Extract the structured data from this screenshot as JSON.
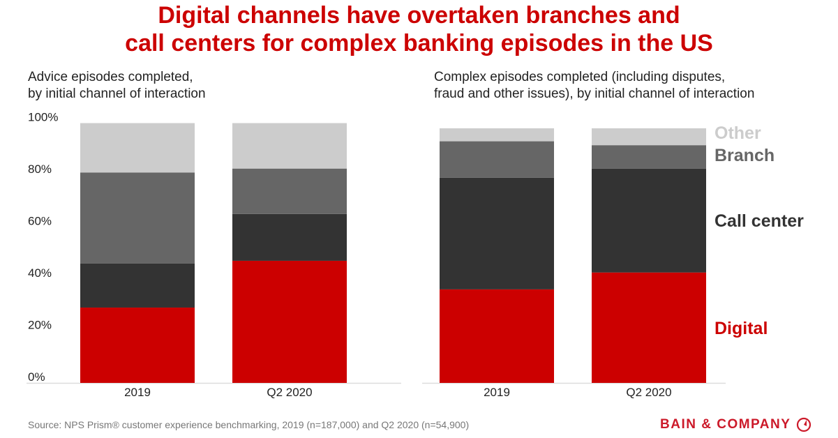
{
  "title_lines": [
    "Digital channels have overtaken branches and",
    "call centers for complex banking episodes in the US"
  ],
  "colors": {
    "Digital": "#cc0000",
    "Call center": "#333333",
    "Branch": "#666666",
    "Other": "#cccccc",
    "title": "#cc0000"
  },
  "chart_data": [
    {
      "type": "bar",
      "stacked": true,
      "title": "Advice episodes completed, by initial channel of interaction",
      "title_lines": [
        "Advice episodes completed,",
        "by initial channel of interaction"
      ],
      "categories": [
        "2019",
        "Q2 2020"
      ],
      "ylim": [
        0,
        100
      ],
      "yticks": [
        "0%",
        "20%",
        "40%",
        "60%",
        "80%",
        "100%"
      ],
      "series": [
        {
          "name": "Digital",
          "values": [
            29,
            47
          ]
        },
        {
          "name": "Call center",
          "values": [
            17,
            18
          ]
        },
        {
          "name": "Branch",
          "values": [
            35,
            17.5
          ]
        },
        {
          "name": "Other",
          "values": [
            19,
            17.5
          ]
        }
      ]
    },
    {
      "type": "bar",
      "stacked": true,
      "title": "Complex episodes completed (including disputes, fraud and other issues), by initial channel of interaction",
      "title_lines": [
        "Complex episodes completed (including disputes,",
        "fraud and other issues), by initial channel of interaction"
      ],
      "categories": [
        "2019",
        "Q2 2020"
      ],
      "ylim": [
        0,
        100
      ],
      "legend": "right",
      "series": [
        {
          "name": "Digital",
          "values": [
            36,
            42.5
          ]
        },
        {
          "name": "Call center",
          "values": [
            43,
            40
          ]
        },
        {
          "name": "Branch",
          "values": [
            14,
            9
          ]
        },
        {
          "name": "Other",
          "values": [
            5,
            6.5
          ]
        }
      ]
    }
  ],
  "source": "Source: NPS Prism® customer experience benchmarking, 2019 (n=187,000) and Q2 2020 (n=54,900)",
  "logo_text": "BAIN & COMPANY"
}
